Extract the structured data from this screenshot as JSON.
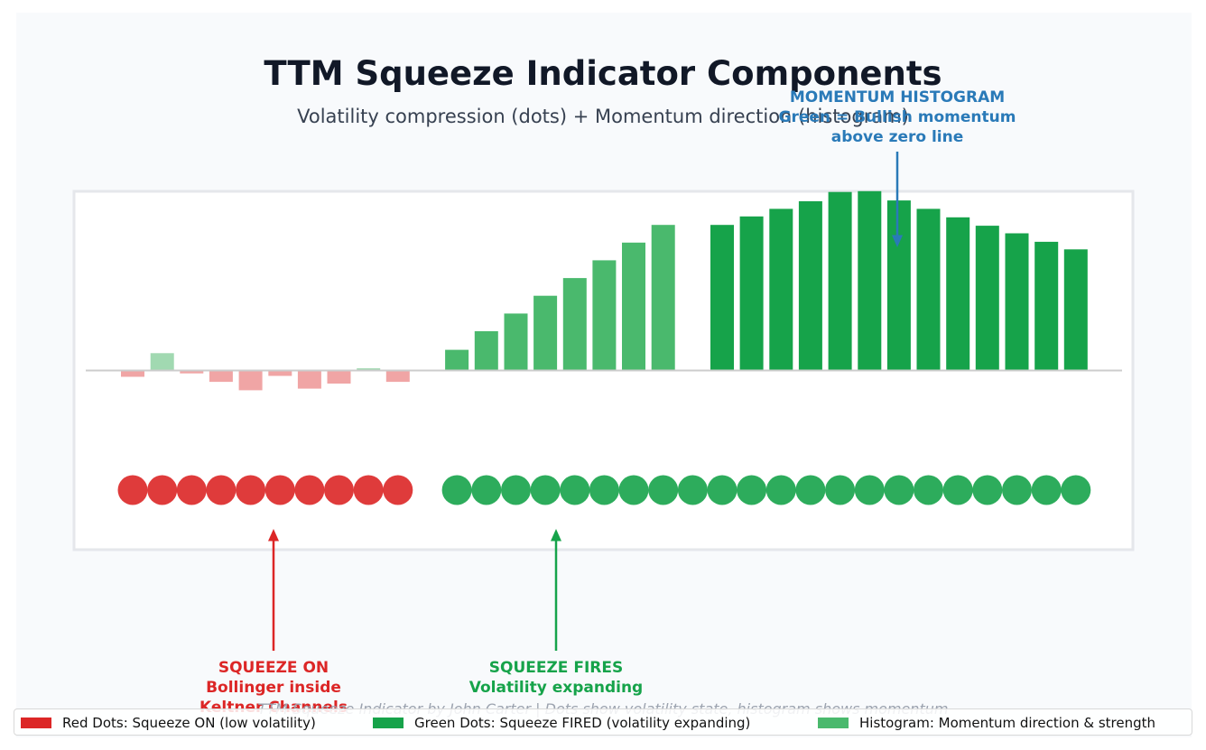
{
  "title": "TTM Squeeze Indicator Components",
  "subtitle": "Volatility compression (dots) + Momentum direction (histogram)",
  "credit": "TTM Squeeze Indicator by John Carter | Dots show volatility state, histogram shows momentum",
  "colors": {
    "red": "#dc2626",
    "green_dark": "#16a34a",
    "green_light": "#4ab96d",
    "red_light": "#f0a5a5",
    "green_faint": "#a1d9b1",
    "momentum_blue": "#2a7ab8",
    "panel_bg": "#f8fafc",
    "panel_border": "#e5e7eb",
    "zero_line": "#cccccc"
  },
  "annotations": {
    "squeeze_on": {
      "lines": [
        "SQUEEZE ON",
        "Bollinger inside",
        "Keltner Channels"
      ]
    },
    "squeeze_fires": {
      "lines": [
        "SQUEEZE FIRES",
        "Volatility expanding"
      ]
    },
    "momentum": {
      "lines": [
        "MOMENTUM HISTOGRAM",
        "Green = Bullish momentum",
        "above zero line"
      ]
    }
  },
  "legend": [
    {
      "label": "Red Dots: Squeeze ON (low volatility)",
      "color": "#dc2626"
    },
    {
      "label": "Green Dots: Squeeze FIRED (volatility expanding)",
      "color": "#16a34a"
    },
    {
      "label": "Histogram: Momentum direction & strength",
      "color": "#4ab96d"
    }
  ],
  "chart_data": {
    "type": "bar",
    "title": "TTM Squeeze Indicator Components",
    "subtitle": "Volatility compression (dots) + Momentum direction (histogram)",
    "x": [
      0,
      1,
      2,
      3,
      4,
      5,
      6,
      7,
      8,
      9,
      11,
      12,
      13,
      14,
      15,
      16,
      17,
      18,
      20,
      21,
      22,
      23,
      24,
      25,
      26,
      27,
      28,
      29,
      30,
      31,
      32
    ],
    "histogram": {
      "name": "Histogram: Momentum direction & strength",
      "values": [
        -0.4,
        1.0,
        -0.2,
        -0.7,
        -1.2,
        -0.35,
        -1.1,
        -0.8,
        0.1,
        -0.7,
        1.2,
        2.3,
        3.35,
        4.4,
        5.45,
        6.5,
        7.55,
        8.6,
        8.6,
        9.1,
        9.55,
        10.0,
        10.55,
        10.6,
        10.05,
        9.55,
        9.05,
        8.55,
        8.1,
        7.6,
        7.15
      ],
      "colors": [
        "red_light",
        "green_faint",
        "red_light",
        "red_light",
        "red_light",
        "red_light",
        "red_light",
        "red_light",
        "green_faint",
        "red_light",
        "green_light",
        "green_light",
        "green_light",
        "green_light",
        "green_light",
        "green_light",
        "green_light",
        "green_light",
        "green_dark",
        "green_dark",
        "green_dark",
        "green_dark",
        "green_dark",
        "green_dark",
        "green_dark",
        "green_dark",
        "green_dark",
        "green_dark",
        "green_dark",
        "green_dark",
        "green_dark"
      ]
    },
    "dots": {
      "x": [
        0,
        1,
        2,
        3,
        4,
        5,
        6,
        7,
        8,
        9,
        11,
        12,
        13,
        14,
        15,
        16,
        17,
        18,
        19,
        20,
        21,
        22,
        23,
        24,
        25,
        26,
        27,
        28,
        29,
        30,
        31,
        32
      ],
      "states": [
        "on",
        "on",
        "on",
        "on",
        "on",
        "on",
        "on",
        "on",
        "on",
        "on",
        "fired",
        "fired",
        "fired",
        "fired",
        "fired",
        "fired",
        "fired",
        "fired",
        "fired",
        "fired",
        "fired",
        "fired",
        "fired",
        "fired",
        "fired",
        "fired",
        "fired",
        "fired",
        "fired",
        "fired",
        "fired",
        "fired"
      ]
    },
    "grid": false,
    "legend_position": "bottom"
  }
}
